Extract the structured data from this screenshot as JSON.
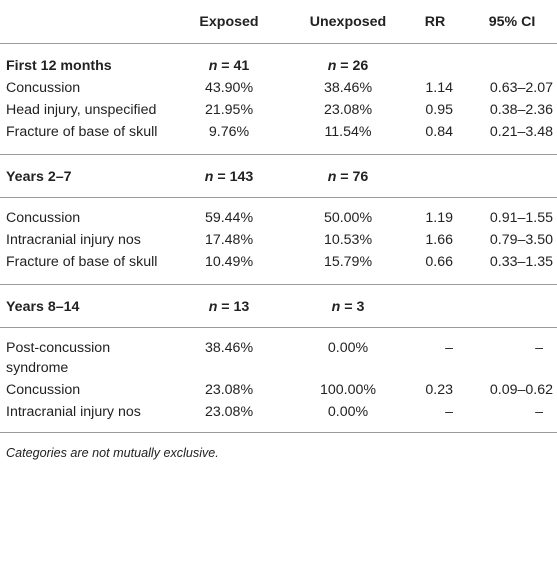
{
  "headers": [
    "",
    "Exposed",
    "Unexposed",
    "RR",
    "95% CI"
  ],
  "sections": [
    {
      "title": "First 12 months",
      "exposed_n": "41",
      "unexposed_n": "26",
      "rows": [
        {
          "label": "Concussion",
          "exposed": "43.90%",
          "unexposed": "38.46%",
          "rr": "1.14",
          "ci": "0.63–2.07"
        },
        {
          "label": "Head injury, unspecified",
          "exposed": "21.95%",
          "unexposed": "23.08%",
          "rr": "0.95",
          "ci": "0.38–2.36"
        },
        {
          "label": "Fracture of base of skull",
          "exposed": "9.76%",
          "unexposed": "11.54%",
          "rr": "0.84",
          "ci": "0.21–3.48"
        }
      ]
    },
    {
      "title": "Years 2–7",
      "exposed_n": "143",
      "unexposed_n": "76",
      "rows": [
        {
          "label": "Concussion",
          "exposed": "59.44%",
          "unexposed": "50.00%",
          "rr": "1.19",
          "ci": "0.91–1.55"
        },
        {
          "label": "Intracranial injury nos",
          "exposed": "17.48%",
          "unexposed": "10.53%",
          "rr": "1.66",
          "ci": "0.79–3.50"
        },
        {
          "label": "Fracture of base of skull",
          "exposed": "10.49%",
          "unexposed": "15.79%",
          "rr": "0.66",
          "ci": "0.33–1.35"
        }
      ]
    },
    {
      "title": "Years 8–14",
      "exposed_n": "13",
      "unexposed_n": "3",
      "rows": [
        {
          "label": "Post-concussion syndrome",
          "exposed": "38.46%",
          "unexposed": "0.00%",
          "rr": "–",
          "ci": "–"
        },
        {
          "label": "Concussion",
          "exposed": "23.08%",
          "unexposed": "100.00%",
          "rr": "0.23",
          "ci": "0.09–0.62"
        },
        {
          "label": "Intracranial injury nos",
          "exposed": "23.08%",
          "unexposed": "0.00%",
          "rr": "–",
          "ci": "–"
        }
      ]
    }
  ],
  "n_prefix": "n",
  "n_equals": " = ",
  "footnote": "Categories are not mutually exclusive."
}
